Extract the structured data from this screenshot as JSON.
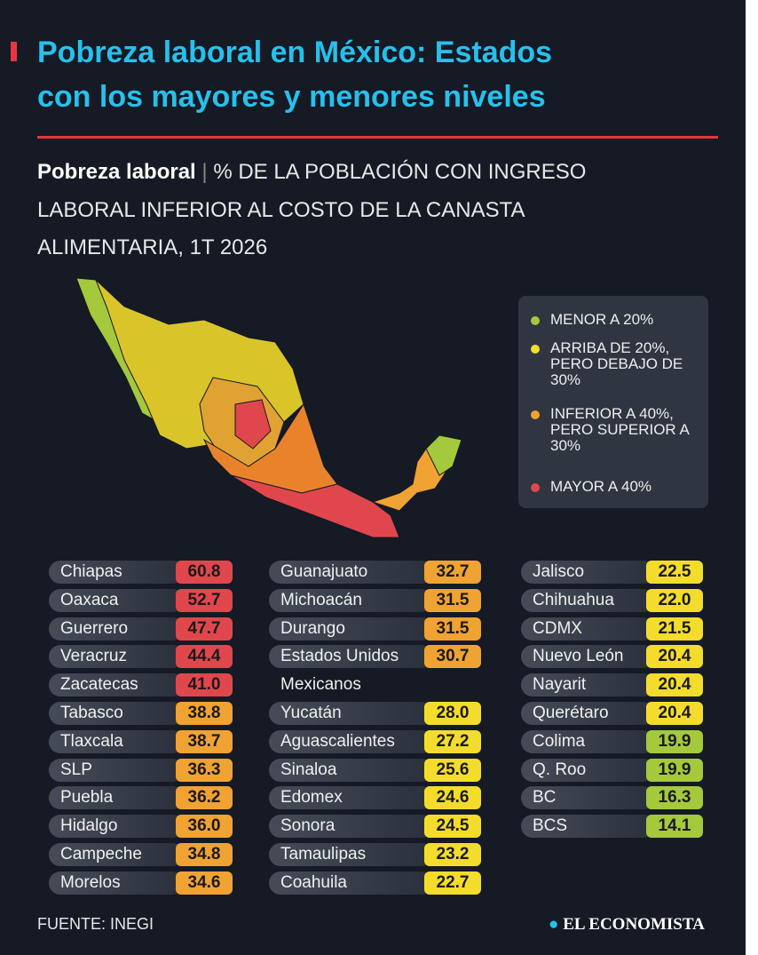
{
  "header": {
    "title_line1": "Pobreza laboral en México: Estados",
    "title_line2": "con los mayores y menores niveles",
    "subtitle_bold": "Pobreza laboral",
    "subtitle_line1": "% DE LA POBLACIÓN CON INGRESO",
    "subtitle_line2": "LABORAL INFERIOR AL COSTO DE LA CANASTA",
    "subtitle_line3": "ALIMENTARIA, 1T 2026"
  },
  "legend": [
    {
      "label": "MENOR A 20%",
      "color": "#a4c93c"
    },
    {
      "label": "ARRIBA DE 20%, PERO DEBAJO DE 30%",
      "color": "#f4dc2c"
    },
    {
      "label": "INFERIOR A 40%, PERO SUPERIOR A 30%",
      "color": "#f0a232"
    },
    {
      "label": "MAYOR A 40%",
      "color": "#e0474c"
    }
  ],
  "table": {
    "columns": [
      {
        "rows": [
          {
            "name": "Chiapas",
            "value": "60.8",
            "level": 3
          },
          {
            "name": "Oaxaca",
            "value": "52.7",
            "level": 3
          },
          {
            "name": "Guerrero",
            "value": "47.7",
            "level": 3
          },
          {
            "name": "Veracruz",
            "value": "44.4",
            "level": 3
          },
          {
            "name": "Zacatecas",
            "value": "41.0",
            "level": 3
          },
          {
            "name": "Tabasco",
            "value": "38.8",
            "level": 2
          },
          {
            "name": "Tlaxcala",
            "value": "38.7",
            "level": 2
          },
          {
            "name": "SLP",
            "value": "36.3",
            "level": 2
          },
          {
            "name": "Puebla",
            "value": "36.2",
            "level": 2
          },
          {
            "name": "Hidalgo",
            "value": "36.0",
            "level": 2
          },
          {
            "name": "Campeche",
            "value": "34.8",
            "level": 2
          },
          {
            "name": "Morelos",
            "value": "34.6",
            "level": 2
          }
        ]
      },
      {
        "rows": [
          {
            "name": "Guanajuato",
            "value": "32.7",
            "level": 2
          },
          {
            "name": "Michoacán",
            "value": "31.5",
            "level": 2
          },
          {
            "name": "Durango",
            "value": "31.5",
            "level": 2
          },
          {
            "name": "Estados Unidos Mexicanos",
            "value": "30.7",
            "level": 2
          },
          {
            "name": "Yucatán",
            "value": "28.0",
            "level": 1
          },
          {
            "name": "Aguascalientes",
            "value": "27.2",
            "level": 1
          },
          {
            "name": "Sinaloa",
            "value": "25.6",
            "level": 1
          },
          {
            "name": "Edomex",
            "value": "24.6",
            "level": 1
          },
          {
            "name": "Sonora",
            "value": "24.5",
            "level": 1
          },
          {
            "name": "Tamaulipas",
            "value": "23.2",
            "level": 1
          },
          {
            "name": "Coahuila",
            "value": "22.7",
            "level": 1
          }
        ]
      },
      {
        "rows": [
          {
            "name": "Jalisco",
            "value": "22.5",
            "level": 1
          },
          {
            "name": "Chihuahua",
            "value": "22.0",
            "level": 1
          },
          {
            "name": "CDMX",
            "value": "21.5",
            "level": 1
          },
          {
            "name": "Nuevo León",
            "value": "20.4",
            "level": 1
          },
          {
            "name": "Nayarit",
            "value": "20.4",
            "level": 1
          },
          {
            "name": "Querétaro",
            "value": "20.4",
            "level": 1
          },
          {
            "name": "Colima",
            "value": "19.9",
            "level": 0
          },
          {
            "name": "Q. Roo",
            "value": "19.9",
            "level": 0
          },
          {
            "name": "BC",
            "value": "16.3",
            "level": 0
          },
          {
            "name": "BCS",
            "value": "14.1",
            "level": 0
          }
        ]
      }
    ]
  },
  "footer": {
    "source": "FUENTE: INEGI",
    "brand": "EL ECONOMISTA"
  }
}
